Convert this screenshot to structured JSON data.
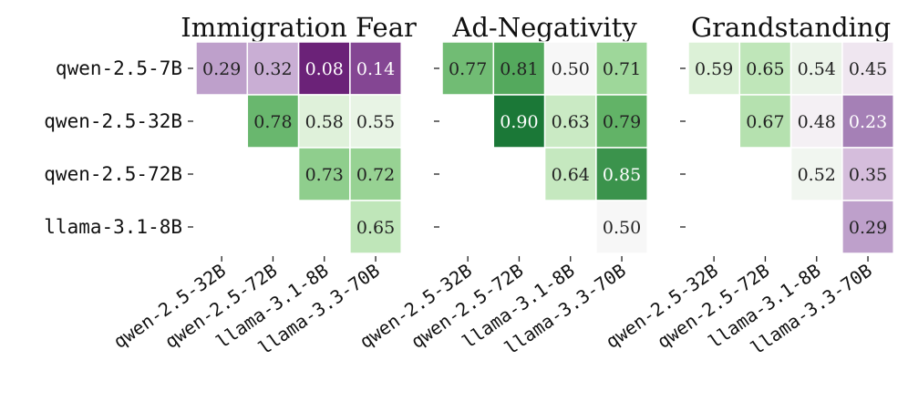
{
  "chart_data": [
    {
      "type": "heatmap",
      "title": "Immigration Fear",
      "rows": [
        "qwen-2.5-7B",
        "qwen-2.5-32B",
        "qwen-2.5-72B",
        "llama-3.1-8B"
      ],
      "columns": [
        "qwen-2.5-32B",
        "qwen-2.5-72B",
        "llama-3.1-8B",
        "llama-3.3-70B"
      ],
      "values": [
        [
          0.29,
          0.32,
          0.08,
          0.14
        ],
        [
          null,
          0.78,
          0.58,
          0.55
        ],
        [
          null,
          null,
          0.73,
          0.72
        ],
        [
          null,
          null,
          null,
          0.65
        ]
      ],
      "labels": [
        [
          "0.29",
          "0.32",
          "0.08",
          "0.14"
        ],
        [
          null,
          "0.78",
          "0.58",
          "0.55"
        ],
        [
          null,
          null,
          "0.73",
          "0.72"
        ],
        [
          null,
          null,
          null,
          "0.65"
        ]
      ],
      "colormap": "PRGn",
      "vmin": 0,
      "vmax": 1
    },
    {
      "type": "heatmap",
      "title": "Ad-Negativity",
      "rows": [
        "qwen-2.5-7B",
        "qwen-2.5-32B",
        "qwen-2.5-72B",
        "llama-3.1-8B"
      ],
      "columns": [
        "qwen-2.5-32B",
        "qwen-2.5-72B",
        "llama-3.1-8B",
        "llama-3.3-70B"
      ],
      "values": [
        [
          0.77,
          0.81,
          0.5,
          0.71
        ],
        [
          null,
          0.9,
          0.63,
          0.79
        ],
        [
          null,
          null,
          0.64,
          0.85
        ],
        [
          null,
          null,
          null,
          0.5
        ]
      ],
      "labels": [
        [
          "0.77",
          "0.81",
          "0.50",
          "0.71"
        ],
        [
          null,
          "0.90",
          "0.63",
          "0.79"
        ],
        [
          null,
          null,
          "0.64",
          "0.85"
        ],
        [
          null,
          null,
          null,
          "0.50"
        ]
      ],
      "colormap": "PRGn",
      "vmin": 0,
      "vmax": 1
    },
    {
      "type": "heatmap",
      "title": "Grandstanding",
      "rows": [
        "qwen-2.5-7B",
        "qwen-2.5-32B",
        "qwen-2.5-72B",
        "llama-3.1-8B"
      ],
      "columns": [
        "qwen-2.5-32B",
        "qwen-2.5-72B",
        "llama-3.1-8B",
        "llama-3.3-70B"
      ],
      "values": [
        [
          0.59,
          0.65,
          0.54,
          0.45
        ],
        [
          null,
          0.67,
          0.48,
          0.23
        ],
        [
          null,
          null,
          0.52,
          0.35
        ],
        [
          null,
          null,
          null,
          0.29
        ]
      ],
      "labels": [
        [
          "0.59",
          "0.65",
          "0.54",
          "0.45"
        ],
        [
          null,
          "0.67",
          "0.48",
          "0.23"
        ],
        [
          null,
          null,
          "0.52",
          "0.35"
        ],
        [
          null,
          null,
          null,
          "0.29"
        ]
      ],
      "colormap": "PRGn",
      "vmin": 0,
      "vmax": 1
    }
  ]
}
